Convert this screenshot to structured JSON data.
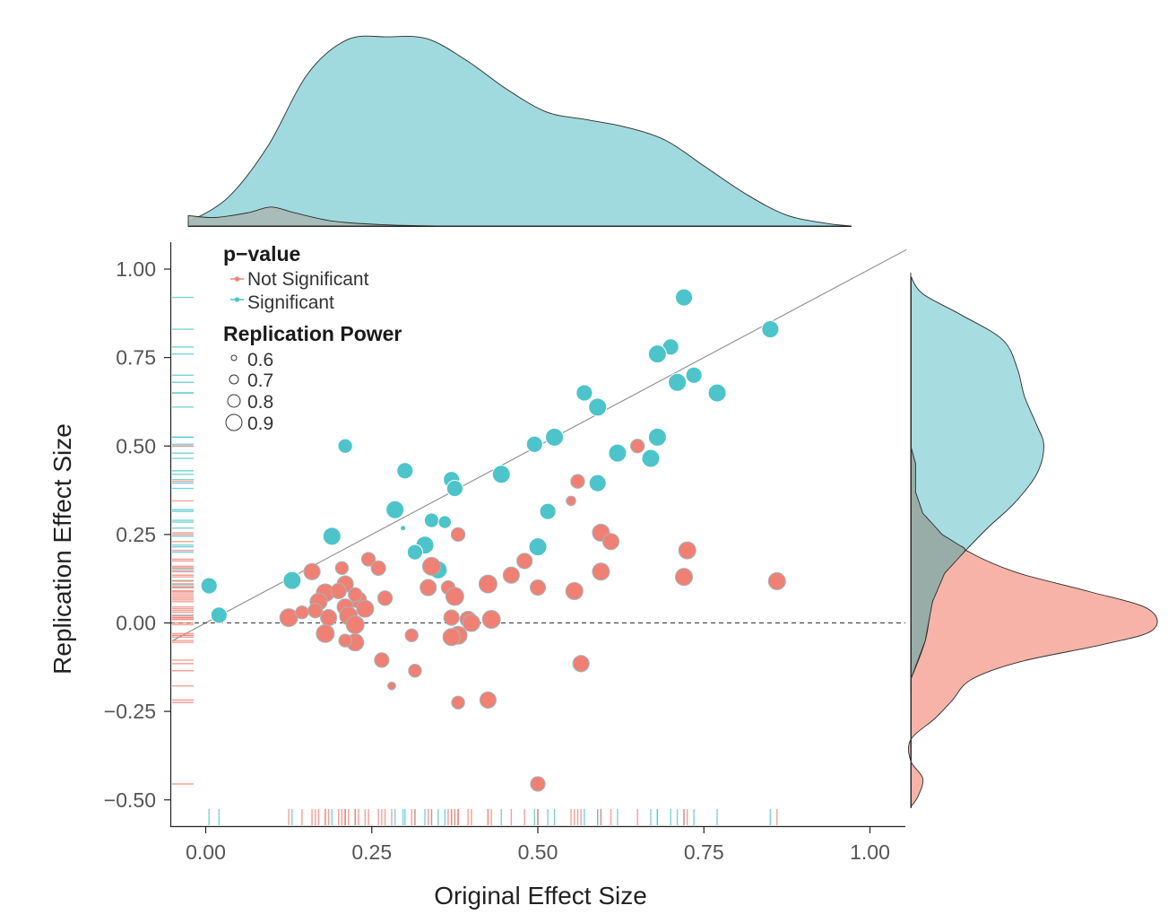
{
  "chart_data": {
    "type": "scatter",
    "xlabel": "Original Effect Size",
    "ylabel": "Replication Effect Size",
    "xlim": [
      -0.055,
      1.05
    ],
    "ylim": [
      -0.575,
      1.075
    ],
    "xticks": [
      0.0,
      0.25,
      0.5,
      0.75,
      1.0
    ],
    "xtick_labels": [
      "0.00",
      "0.25",
      "0.50",
      "0.75",
      "1.00"
    ],
    "yticks": [
      -0.5,
      -0.25,
      0.0,
      0.25,
      0.5,
      0.75,
      1.0
    ],
    "ytick_labels": [
      "−0.50",
      "−0.25",
      "0.00",
      "0.25",
      "0.50",
      "0.75",
      "1.00"
    ],
    "reference_lines": {
      "identity": "y = x",
      "zero": "y = 0 (dashed)"
    },
    "colors": {
      "Not Significant": "#f08074",
      "Significant": "#4cc4ca"
    },
    "legend": {
      "color_title": "p−value",
      "color_entries": [
        "Not Significant",
        "Significant"
      ],
      "size_title": "Replication Power",
      "size_entries": [
        {
          "value": 0.6,
          "label": "0.6"
        },
        {
          "value": 0.7,
          "label": "0.7"
        },
        {
          "value": 0.8,
          "label": "0.8"
        },
        {
          "value": 0.9,
          "label": "0.9"
        }
      ]
    },
    "series": [
      {
        "name": "Significant",
        "points": [
          {
            "x": 0.72,
            "y": 0.92,
            "power": 0.88
          },
          {
            "x": 0.85,
            "y": 0.83,
            "power": 0.88
          },
          {
            "x": 0.7,
            "y": 0.78,
            "power": 0.86
          },
          {
            "x": 0.68,
            "y": 0.76,
            "power": 0.9
          },
          {
            "x": 0.735,
            "y": 0.7,
            "power": 0.86
          },
          {
            "x": 0.71,
            "y": 0.68,
            "power": 0.9
          },
          {
            "x": 0.77,
            "y": 0.65,
            "power": 0.9
          },
          {
            "x": 0.57,
            "y": 0.65,
            "power": 0.86
          },
          {
            "x": 0.59,
            "y": 0.61,
            "power": 0.9
          },
          {
            "x": 0.68,
            "y": 0.525,
            "power": 0.9
          },
          {
            "x": 0.525,
            "y": 0.525,
            "power": 0.9
          },
          {
            "x": 0.495,
            "y": 0.505,
            "power": 0.86
          },
          {
            "x": 0.62,
            "y": 0.48,
            "power": 0.9
          },
          {
            "x": 0.67,
            "y": 0.465,
            "power": 0.9
          },
          {
            "x": 0.21,
            "y": 0.5,
            "power": 0.82
          },
          {
            "x": 0.3,
            "y": 0.43,
            "power": 0.86
          },
          {
            "x": 0.445,
            "y": 0.42,
            "power": 0.9
          },
          {
            "x": 0.37,
            "y": 0.405,
            "power": 0.86
          },
          {
            "x": 0.375,
            "y": 0.38,
            "power": 0.86
          },
          {
            "x": 0.59,
            "y": 0.395,
            "power": 0.88
          },
          {
            "x": 0.285,
            "y": 0.32,
            "power": 0.9
          },
          {
            "x": 0.515,
            "y": 0.315,
            "power": 0.86
          },
          {
            "x": 0.34,
            "y": 0.29,
            "power": 0.82
          },
          {
            "x": 0.36,
            "y": 0.285,
            "power": 0.78
          },
          {
            "x": 0.19,
            "y": 0.245,
            "power": 0.9
          },
          {
            "x": 0.33,
            "y": 0.22,
            "power": 0.9
          },
          {
            "x": 0.5,
            "y": 0.215,
            "power": 0.9
          },
          {
            "x": 0.315,
            "y": 0.2,
            "power": 0.84
          },
          {
            "x": 0.35,
            "y": 0.15,
            "power": 0.9
          },
          {
            "x": 0.13,
            "y": 0.12,
            "power": 0.9
          },
          {
            "x": 0.005,
            "y": 0.105,
            "power": 0.86
          },
          {
            "x": 0.02,
            "y": 0.022,
            "power": 0.86
          },
          {
            "x": 0.297,
            "y": 0.268,
            "power": 0.6
          }
        ]
      },
      {
        "name": "Not Significant",
        "points": [
          {
            "x": 0.65,
            "y": 0.5,
            "power": 0.8
          },
          {
            "x": 0.56,
            "y": 0.4,
            "power": 0.8
          },
          {
            "x": 0.55,
            "y": 0.345,
            "power": 0.7
          },
          {
            "x": 0.595,
            "y": 0.255,
            "power": 0.88
          },
          {
            "x": 0.61,
            "y": 0.23,
            "power": 0.86
          },
          {
            "x": 0.725,
            "y": 0.205,
            "power": 0.88
          },
          {
            "x": 0.38,
            "y": 0.25,
            "power": 0.8
          },
          {
            "x": 0.48,
            "y": 0.175,
            "power": 0.84
          },
          {
            "x": 0.595,
            "y": 0.145,
            "power": 0.88
          },
          {
            "x": 0.72,
            "y": 0.13,
            "power": 0.88
          },
          {
            "x": 0.86,
            "y": 0.118,
            "power": 0.88
          },
          {
            "x": 0.16,
            "y": 0.145,
            "power": 0.86
          },
          {
            "x": 0.205,
            "y": 0.155,
            "power": 0.78
          },
          {
            "x": 0.245,
            "y": 0.18,
            "power": 0.8
          },
          {
            "x": 0.26,
            "y": 0.155,
            "power": 0.82
          },
          {
            "x": 0.34,
            "y": 0.16,
            "power": 0.9
          },
          {
            "x": 0.46,
            "y": 0.135,
            "power": 0.86
          },
          {
            "x": 0.425,
            "y": 0.11,
            "power": 0.9
          },
          {
            "x": 0.335,
            "y": 0.1,
            "power": 0.86
          },
          {
            "x": 0.365,
            "y": 0.1,
            "power": 0.8
          },
          {
            "x": 0.5,
            "y": 0.1,
            "power": 0.84
          },
          {
            "x": 0.555,
            "y": 0.09,
            "power": 0.88
          },
          {
            "x": 0.375,
            "y": 0.075,
            "power": 0.9
          },
          {
            "x": 0.27,
            "y": 0.07,
            "power": 0.82
          },
          {
            "x": 0.18,
            "y": 0.085,
            "power": 0.9
          },
          {
            "x": 0.21,
            "y": 0.11,
            "power": 0.86
          },
          {
            "x": 0.2,
            "y": 0.09,
            "power": 0.84
          },
          {
            "x": 0.17,
            "y": 0.06,
            "power": 0.88
          },
          {
            "x": 0.23,
            "y": 0.065,
            "power": 0.86
          },
          {
            "x": 0.225,
            "y": 0.08,
            "power": 0.8
          },
          {
            "x": 0.21,
            "y": 0.045,
            "power": 0.86
          },
          {
            "x": 0.24,
            "y": 0.04,
            "power": 0.88
          },
          {
            "x": 0.165,
            "y": 0.035,
            "power": 0.82
          },
          {
            "x": 0.125,
            "y": 0.015,
            "power": 0.9
          },
          {
            "x": 0.145,
            "y": 0.03,
            "power": 0.78
          },
          {
            "x": 0.185,
            "y": 0.015,
            "power": 0.86
          },
          {
            "x": 0.215,
            "y": 0.02,
            "power": 0.9
          },
          {
            "x": 0.225,
            "y": -0.005,
            "power": 0.9
          },
          {
            "x": 0.37,
            "y": 0.015,
            "power": 0.84
          },
          {
            "x": 0.395,
            "y": 0.01,
            "power": 0.86
          },
          {
            "x": 0.43,
            "y": 0.01,
            "power": 0.9
          },
          {
            "x": 0.4,
            "y": 0.0,
            "power": 0.88
          },
          {
            "x": 0.18,
            "y": -0.03,
            "power": 0.9
          },
          {
            "x": 0.225,
            "y": -0.055,
            "power": 0.88
          },
          {
            "x": 0.21,
            "y": -0.05,
            "power": 0.78
          },
          {
            "x": 0.38,
            "y": -0.035,
            "power": 0.9
          },
          {
            "x": 0.37,
            "y": -0.04,
            "power": 0.88
          },
          {
            "x": 0.31,
            "y": -0.035,
            "power": 0.78
          },
          {
            "x": 0.265,
            "y": -0.105,
            "power": 0.82
          },
          {
            "x": 0.315,
            "y": -0.135,
            "power": 0.78
          },
          {
            "x": 0.565,
            "y": -0.115,
            "power": 0.86
          },
          {
            "x": 0.28,
            "y": -0.178,
            "power": 0.66
          },
          {
            "x": 0.38,
            "y": -0.225,
            "power": 0.78
          },
          {
            "x": 0.425,
            "y": -0.218,
            "power": 0.86
          },
          {
            "x": 0.5,
            "y": -0.455,
            "power": 0.82
          }
        ]
      }
    ],
    "marginal_x": {
      "Significant_density": [
        [
          0.0,
          0.02
        ],
        [
          0.06,
          0.15
        ],
        [
          0.12,
          0.42
        ],
        [
          0.18,
          0.8
        ],
        [
          0.24,
          0.98
        ],
        [
          0.3,
          0.995
        ],
        [
          0.36,
          0.985
        ],
        [
          0.42,
          0.87
        ],
        [
          0.48,
          0.72
        ],
        [
          0.54,
          0.6
        ],
        [
          0.6,
          0.56
        ],
        [
          0.66,
          0.52
        ],
        [
          0.72,
          0.45
        ],
        [
          0.78,
          0.31
        ],
        [
          0.84,
          0.17
        ],
        [
          0.9,
          0.06
        ],
        [
          0.96,
          0.015
        ],
        [
          1.0,
          0.0
        ]
      ],
      "Not_Significant_density": [
        [
          0.0,
          0.055
        ],
        [
          0.04,
          0.045
        ],
        [
          0.09,
          0.07
        ],
        [
          0.125,
          0.1
        ],
        [
          0.16,
          0.07
        ],
        [
          0.22,
          0.025
        ],
        [
          0.3,
          0.006
        ],
        [
          0.38,
          0.0
        ]
      ]
    },
    "marginal_y": {
      "Significant_density": [
        [
          -0.16,
          0.0
        ],
        [
          -0.05,
          0.06
        ],
        [
          0.06,
          0.09
        ],
        [
          0.14,
          0.14
        ],
        [
          0.2,
          0.22
        ],
        [
          0.27,
          0.32
        ],
        [
          0.34,
          0.43
        ],
        [
          0.42,
          0.52
        ],
        [
          0.5,
          0.55
        ],
        [
          0.56,
          0.52
        ],
        [
          0.64,
          0.47
        ],
        [
          0.72,
          0.44
        ],
        [
          0.8,
          0.38
        ],
        [
          0.87,
          0.21
        ],
        [
          0.93,
          0.05
        ],
        [
          0.98,
          0.0
        ]
      ],
      "Not_Significant_density": [
        [
          -0.52,
          0.0
        ],
        [
          -0.49,
          0.03
        ],
        [
          -0.44,
          0.05
        ],
        [
          -0.39,
          0.0
        ],
        [
          -0.33,
          0.0
        ],
        [
          -0.27,
          0.1
        ],
        [
          -0.22,
          0.17
        ],
        [
          -0.16,
          0.25
        ],
        [
          -0.11,
          0.45
        ],
        [
          -0.06,
          0.8
        ],
        [
          -0.02,
          1.0
        ],
        [
          0.04,
          0.98
        ],
        [
          0.09,
          0.73
        ],
        [
          0.14,
          0.45
        ],
        [
          0.19,
          0.27
        ],
        [
          0.25,
          0.13
        ],
        [
          0.31,
          0.05
        ],
        [
          0.37,
          0.02
        ],
        [
          0.45,
          0.02
        ],
        [
          0.5,
          0.0
        ]
      ]
    }
  }
}
